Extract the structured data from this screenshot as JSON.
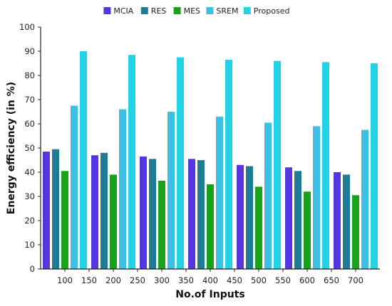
{
  "chart_data": {
    "type": "bar",
    "ylabel": "Energy efficiency (in %)",
    "xlabel": "No.of Inputs",
    "ylim": [
      0,
      100
    ],
    "yticks": [
      0,
      10,
      20,
      30,
      40,
      50,
      60,
      70,
      80,
      90,
      100
    ],
    "xlim": [
      50,
      750
    ],
    "xticks": [
      100,
      150,
      200,
      250,
      300,
      350,
      400,
      450,
      500,
      550,
      600,
      650,
      700
    ],
    "categories": [
      100,
      200,
      300,
      400,
      500,
      600,
      700
    ],
    "legend_position": "top-center",
    "grid": false,
    "series": [
      {
        "name": "MCIA",
        "color": "#5535e0",
        "values": [
          48.5,
          47,
          46.5,
          45.5,
          43,
          42,
          40
        ]
      },
      {
        "name": "RES",
        "color": "#1f7a94",
        "values": [
          49.5,
          48,
          45.5,
          45,
          42.5,
          40.5,
          39
        ]
      },
      {
        "name": "MES",
        "color": "#1aa11a",
        "values": [
          40.5,
          39,
          36.5,
          35,
          34,
          32,
          30.5
        ]
      },
      {
        "name": "SREM",
        "color": "#3cc0e4",
        "values": [
          67.5,
          66,
          65,
          63,
          60.5,
          59,
          57.5
        ]
      },
      {
        "name": "Proposed",
        "color": "#22d3e6",
        "values": [
          90,
          88.5,
          87.5,
          86.5,
          86,
          85.5,
          85
        ]
      }
    ]
  }
}
